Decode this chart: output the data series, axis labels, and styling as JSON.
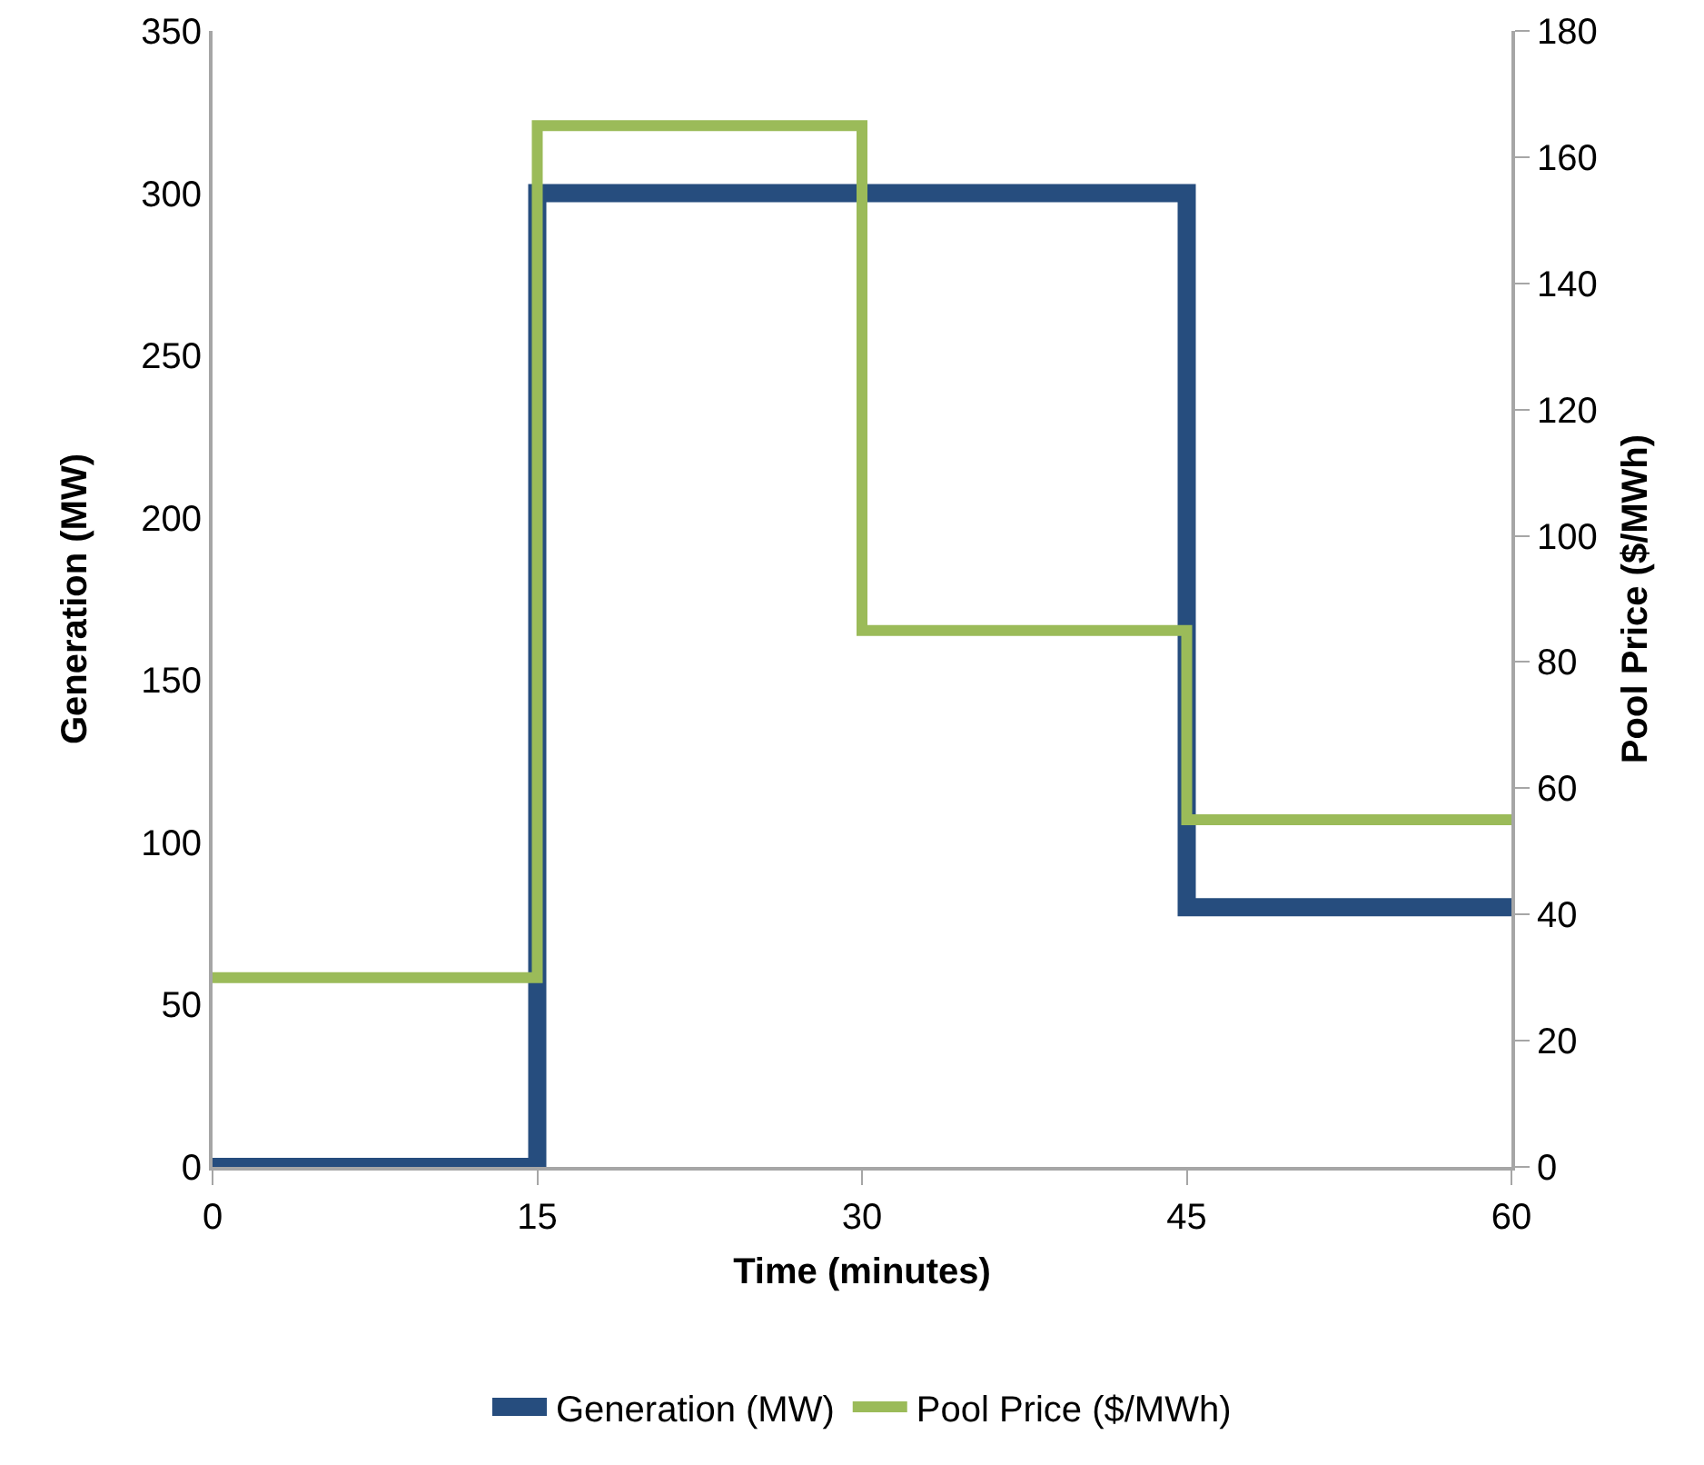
{
  "chart_data": {
    "type": "step",
    "xlabel": "Time (minutes)",
    "ylabel": "Generation (MW)",
    "y2label": "Pool Price ($/MWh)",
    "x": [
      0,
      15,
      30,
      45,
      60
    ],
    "series": [
      {
        "name": "Generation (MW)",
        "color": "#264d7e",
        "values": [
          0,
          300,
          300,
          80,
          80
        ]
      },
      {
        "name": "Pool Price ($/MWh)",
        "color": "#9bbb59",
        "values": [
          30,
          165,
          85,
          55,
          55
        ],
        "axis": "y2"
      }
    ],
    "xlim": [
      0,
      60
    ],
    "xticks": [
      0,
      15,
      30,
      45,
      60
    ],
    "ylim": [
      0,
      350
    ],
    "yticks": [
      0,
      50,
      100,
      150,
      200,
      250,
      300,
      350
    ],
    "y2lim": [
      0,
      180
    ],
    "y2ticks": [
      0,
      20,
      40,
      60,
      80,
      100,
      120,
      140,
      160,
      180
    ],
    "grid": false,
    "legend": "bottom",
    "marker": "none",
    "line_style": "solid"
  }
}
